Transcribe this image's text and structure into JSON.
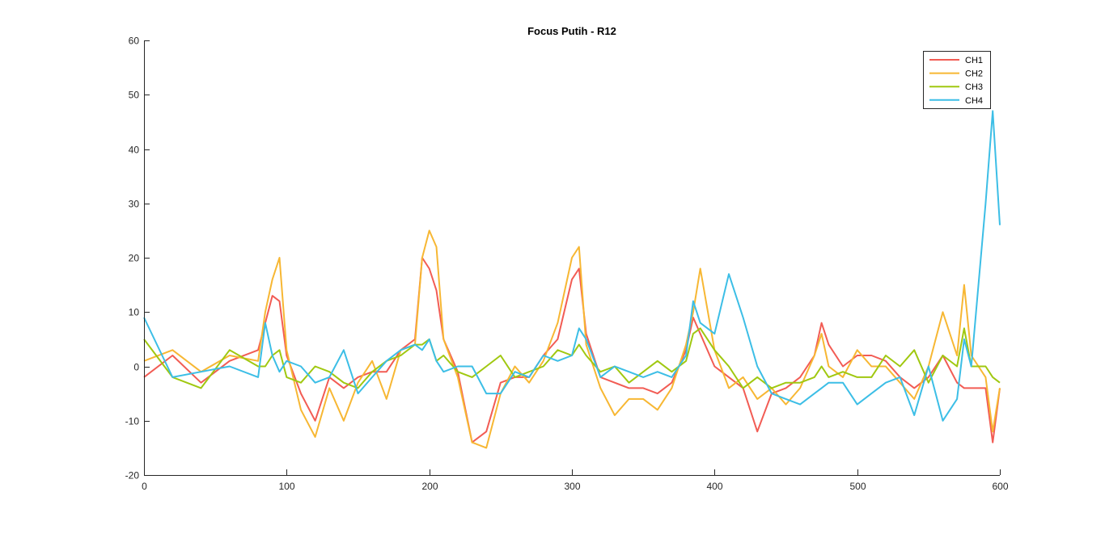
{
  "chart_data": {
    "type": "line",
    "title": "Focus Putih - R12",
    "xlabel": "",
    "ylabel": "",
    "xlim": [
      0,
      600
    ],
    "ylim": [
      -20,
      60
    ],
    "xticks": [
      0,
      100,
      200,
      300,
      400,
      500,
      600
    ],
    "yticks": [
      -20,
      -10,
      0,
      10,
      20,
      30,
      40,
      50,
      60
    ],
    "grid": false,
    "legend_position": "top-right",
    "x": [
      0,
      20,
      40,
      60,
      80,
      85,
      90,
      95,
      100,
      110,
      120,
      130,
      140,
      150,
      160,
      170,
      180,
      190,
      195,
      200,
      205,
      210,
      220,
      230,
      240,
      250,
      260,
      270,
      280,
      290,
      300,
      305,
      310,
      320,
      330,
      340,
      350,
      360,
      370,
      380,
      385,
      390,
      400,
      410,
      420,
      430,
      440,
      450,
      460,
      470,
      475,
      480,
      490,
      500,
      510,
      520,
      530,
      540,
      550,
      560,
      570,
      575,
      580,
      590,
      595,
      600
    ],
    "series": [
      {
        "name": "CH1",
        "color": "#f25c54",
        "values": [
          -2,
          2,
          -3,
          1,
          3,
          8,
          13,
          12,
          2,
          -5,
          -10,
          -2,
          -4,
          -2,
          -1,
          -1,
          3,
          5,
          20,
          18,
          14,
          5,
          -1,
          -14,
          -12,
          -3,
          -2,
          -2,
          2,
          5,
          16,
          18,
          6,
          -2,
          -3,
          -4,
          -4,
          -5,
          -3,
          3,
          9,
          6,
          0,
          -2,
          -4,
          -12,
          -5,
          -4,
          -2,
          2,
          8,
          4,
          0,
          2,
          2,
          1,
          -2,
          -4,
          -2,
          2,
          -3,
          -4,
          -4,
          -4,
          -14,
          -4
        ]
      },
      {
        "name": "CH2",
        "color": "#f7b733",
        "values": [
          1,
          3,
          -1,
          2,
          1,
          10,
          16,
          20,
          3,
          -8,
          -13,
          -4,
          -10,
          -3,
          1,
          -6,
          3,
          4,
          20,
          25,
          22,
          5,
          -2,
          -14,
          -15,
          -5,
          0,
          -3,
          1,
          8,
          20,
          22,
          4,
          -4,
          -9,
          -6,
          -6,
          -8,
          -4,
          4,
          10,
          18,
          3,
          -4,
          -2,
          -6,
          -4,
          -7,
          -4,
          2,
          6,
          0,
          -2,
          3,
          0,
          0,
          -3,
          -6,
          0,
          10,
          2,
          15,
          2,
          -2,
          -12,
          -4
        ]
      },
      {
        "name": "CH3",
        "color": "#a0c810",
        "values": [
          5,
          -2,
          -4,
          3,
          0,
          0,
          2,
          3,
          -2,
          -3,
          0,
          -1,
          -3,
          -4,
          -1,
          1,
          2,
          4,
          4,
          5,
          1,
          2,
          -1,
          -2,
          0,
          2,
          -2,
          -1,
          0,
          3,
          2,
          4,
          2,
          -1,
          0,
          -3,
          -1,
          1,
          -1,
          1,
          6,
          7,
          3,
          0,
          -4,
          -2,
          -4,
          -3,
          -3,
          -2,
          0,
          -2,
          -1,
          -2,
          -2,
          2,
          0,
          3,
          -3,
          2,
          0,
          7,
          0,
          0,
          -2,
          -3
        ]
      },
      {
        "name": "CH4",
        "color": "#3cbee6",
        "values": [
          9,
          -2,
          -1,
          0,
          -2,
          8,
          2,
          -1,
          1,
          0,
          -3,
          -2,
          3,
          -5,
          -2,
          1,
          3,
          4,
          3,
          5,
          1,
          -1,
          0,
          0,
          -5,
          -5,
          -1,
          -2,
          2,
          1,
          2,
          7,
          5,
          -2,
          0,
          -1,
          -2,
          -1,
          -2,
          2,
          12,
          8,
          6,
          17,
          9,
          0,
          -5,
          -6,
          -7,
          -5,
          -4,
          -3,
          -3,
          -7,
          -5,
          -3,
          -2,
          -9,
          0,
          -10,
          -6,
          5,
          0,
          30,
          47,
          26
        ]
      }
    ]
  }
}
